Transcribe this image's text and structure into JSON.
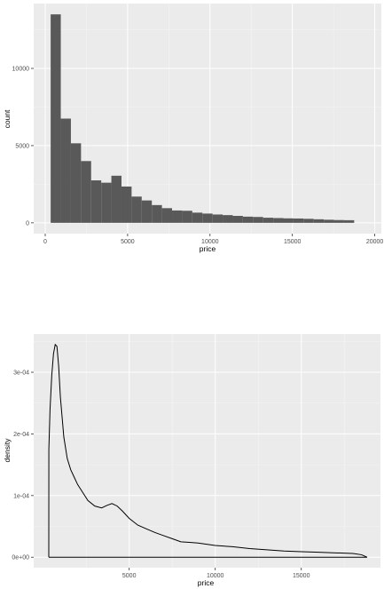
{
  "chart_data": [
    {
      "type": "bar",
      "xlabel": "price",
      "ylabel": "count",
      "xlim": [
        -700,
        20400
      ],
      "ylim": [
        -700,
        14200
      ],
      "xticks": [
        0,
        5000,
        10000,
        15000,
        20000
      ],
      "xtick_labels": [
        "0",
        "5000",
        "10000",
        "15000",
        "20000"
      ],
      "yticks": [
        0,
        5000,
        10000
      ],
      "ytick_labels": [
        "0",
        "5000",
        "10000"
      ],
      "grid": true,
      "bin_width": 614,
      "bin_start": 330,
      "values": [
        13500,
        6750,
        5150,
        4000,
        2750,
        2600,
        3050,
        2350,
        1700,
        1450,
        1150,
        950,
        800,
        780,
        660,
        600,
        540,
        500,
        450,
        400,
        380,
        330,
        310,
        290,
        280,
        260,
        230,
        200,
        180,
        170
      ],
      "colors": {
        "panel": "#ebebeb",
        "grid_major": "#ffffff",
        "grid_minor": "#f4f4f4",
        "bar": "#595959"
      }
    },
    {
      "type": "line",
      "xlabel": "price",
      "ylabel": "density",
      "xlim": [
        -550,
        19600
      ],
      "ylim": [
        -1.7e-05,
        0.000362
      ],
      "xticks": [
        5000,
        10000,
        15000
      ],
      "xtick_labels": [
        "5000",
        "10000",
        "15000"
      ],
      "yticks": [
        0,
        0.0001,
        0.0002,
        0.0003
      ],
      "ytick_labels": [
        "0e+00",
        "1e-04",
        "2e-04",
        "3e-04"
      ],
      "grid": true,
      "x": [
        326,
        330,
        400,
        500,
        600,
        700,
        800,
        900,
        1000,
        1200,
        1400,
        1600,
        1800,
        2000,
        2300,
        2600,
        3000,
        3400,
        3700,
        4000,
        4300,
        4600,
        5000,
        5500,
        6000,
        6500,
        7000,
        7500,
        8000,
        8500,
        9000,
        10000,
        11000,
        12000,
        13000,
        14000,
        15000,
        16000,
        17000,
        18000,
        18500,
        18823,
        18823,
        326
      ],
      "y": [
        0,
        0.000175,
        0.00024,
        0.000295,
        0.00033,
        0.000345,
        0.000342,
        0.00031,
        0.00026,
        0.000195,
        0.00016,
        0.000142,
        0.00013,
        0.000118,
        0.000105,
        9.2e-05,
        8.3e-05,
        8e-05,
        8.4e-05,
        8.7e-05,
        8.3e-05,
        7.5e-05,
        6.3e-05,
        5.2e-05,
        4.6e-05,
        4e-05,
        3.5e-05,
        3e-05,
        2.5e-05,
        2.4e-05,
        2.3e-05,
        1.9e-05,
        1.7e-05,
        1.4e-05,
        1.2e-05,
        1e-05,
        9e-06,
        8e-06,
        7e-06,
        6e-06,
        4e-06,
        0,
        0,
        0
      ],
      "colors": {
        "panel": "#ebebeb",
        "grid_major": "#ffffff",
        "grid_minor": "#f4f4f4",
        "line": "#000000"
      }
    }
  ]
}
